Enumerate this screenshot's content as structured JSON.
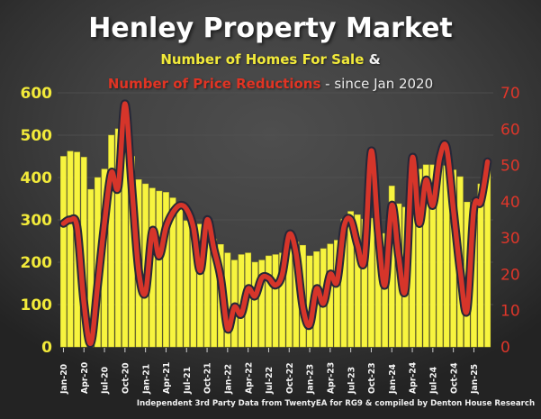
{
  "header": {
    "title": "Henley Property Market",
    "subtitle_homes": "Number of Homes For Sale",
    "subtitle_amp": " &",
    "subtitle_reductions": "Number of Price Reductions",
    "subtitle_since": " - since Jan 2020"
  },
  "footer": {
    "text": "Independent 3rd Party Data from TwentyEA for RG9 & compiled by Denton House Research"
  },
  "colors": {
    "bar_fill": "#f7f43f",
    "bar_edge": "#cdc92c",
    "line_red": "#d6352a",
    "line_outline": "#262838",
    "left_axis_text": "#f2ea3a",
    "right_axis_text": "#df362a",
    "grid": "#535353",
    "background": "#3f3f3f"
  },
  "chart_data": {
    "type": "bar",
    "subtype": "combo-bar-line-dual-axis",
    "title": "Henley Property Market",
    "grid": true,
    "categories": [
      "Jan-20",
      "Feb-20",
      "Mar-20",
      "Apr-20",
      "May-20",
      "Jun-20",
      "Jul-20",
      "Aug-20",
      "Sep-20",
      "Oct-20",
      "Nov-20",
      "Dec-20",
      "Jan-21",
      "Feb-21",
      "Mar-21",
      "Apr-21",
      "May-21",
      "Jun-21",
      "Jul-21",
      "Aug-21",
      "Sep-21",
      "Oct-21",
      "Nov-21",
      "Dec-21",
      "Jan-22",
      "Feb-22",
      "Mar-22",
      "Apr-22",
      "May-22",
      "Jun-22",
      "Jul-22",
      "Aug-22",
      "Sep-22",
      "Oct-22",
      "Nov-22",
      "Dec-22",
      "Jan-23",
      "Feb-23",
      "Mar-23",
      "Apr-23",
      "May-23",
      "Jun-23",
      "Jul-23",
      "Aug-23",
      "Sep-23",
      "Oct-23",
      "Nov-23",
      "Dec-23",
      "Jan-24",
      "Feb-24",
      "Mar-24",
      "Apr-24",
      "May-24",
      "Jun-24",
      "Jul-24",
      "Aug-24",
      "Sep-24",
      "Oct-24",
      "Nov-24",
      "Dec-24",
      "Jan-25",
      "Feb-25",
      "Mar-25"
    ],
    "x_tick_labels": [
      "Jan-20",
      "Apr-20",
      "Jul-20",
      "Oct-20",
      "Jan-21",
      "Apr-21",
      "Jul-21",
      "Oct-21",
      "Jan-22",
      "Apr-22",
      "Jul-22",
      "Oct-22",
      "Jan-23",
      "Apr-23",
      "Jul-23",
      "Oct-23",
      "Jan-24",
      "Apr-24",
      "Jul-24",
      "Oct-24",
      "Jan-25"
    ],
    "series": [
      {
        "name": "Number of Homes For Sale",
        "type": "bar",
        "axis": "left",
        "color": "#f7f43f",
        "values": [
          450,
          462,
          460,
          448,
          372,
          400,
          420,
          500,
          515,
          505,
          450,
          395,
          385,
          375,
          368,
          365,
          352,
          340,
          298,
          295,
          290,
          268,
          255,
          242,
          222,
          205,
          218,
          222,
          200,
          205,
          215,
          218,
          222,
          238,
          248,
          240,
          215,
          225,
          232,
          243,
          252,
          302,
          320,
          312,
          302,
          304,
          300,
          268,
          380,
          338,
          330,
          372,
          420,
          430,
          430,
          440,
          428,
          418,
          402,
          342,
          345,
          385,
          440
        ]
      },
      {
        "name": "Number of Price Reductions",
        "type": "line",
        "axis": "right",
        "color": "#d6352a",
        "values": [
          34,
          35,
          33,
          12,
          1,
          17,
          34,
          48,
          44,
          67,
          44,
          21,
          15,
          32,
          25,
          33,
          37,
          39,
          38,
          33,
          21,
          35,
          27,
          19,
          5,
          11,
          9,
          16,
          14,
          19,
          19,
          17,
          20,
          31,
          26,
          11,
          6,
          16,
          12,
          20,
          18,
          33,
          35,
          28,
          24,
          54,
          32,
          17,
          39,
          25,
          16,
          52,
          34,
          46,
          39,
          52,
          55,
          38,
          21,
          10,
          38,
          40,
          51
        ]
      }
    ],
    "left_axis": {
      "min": 0,
      "max": 600,
      "step": 100,
      "ticks": [
        0,
        100,
        200,
        300,
        400,
        500,
        600
      ]
    },
    "right_axis": {
      "min": 0,
      "max": 70,
      "step": 10,
      "ticks": [
        0,
        10,
        20,
        30,
        40,
        50,
        60,
        70
      ]
    },
    "legend_position": "none"
  }
}
